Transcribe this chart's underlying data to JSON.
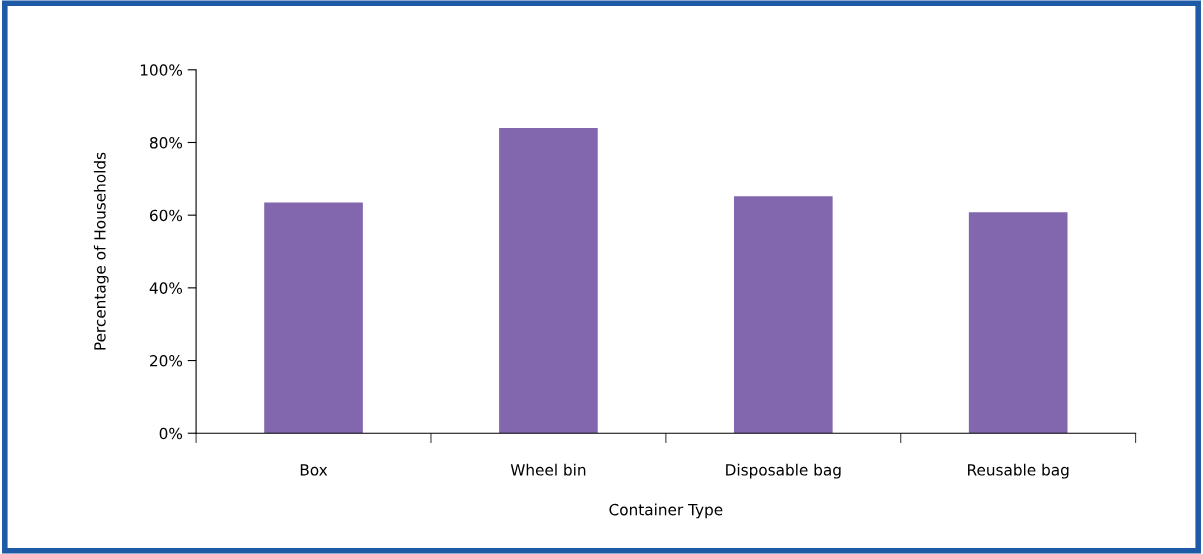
{
  "chart_data": {
    "type": "bar",
    "xlabel": "Container Type",
    "ylabel": "Percentage of Households",
    "categories": [
      "Box",
      "Wheel bin",
      "Disposable bag",
      "Reusable bag"
    ],
    "values": [
      63.5,
      84.0,
      65.2,
      60.8
    ],
    "color": "#8267ae",
    "ylim": [
      0,
      100
    ],
    "yticks": [
      {
        "value": 0,
        "label": "0%"
      },
      {
        "value": 20,
        "label": "20%"
      },
      {
        "value": 40,
        "label": "40%"
      },
      {
        "value": 60,
        "label": "60%"
      },
      {
        "value": 80,
        "label": "80%"
      },
      {
        "value": 100,
        "label": "100%"
      }
    ],
    "grid": false,
    "legend": false
  }
}
